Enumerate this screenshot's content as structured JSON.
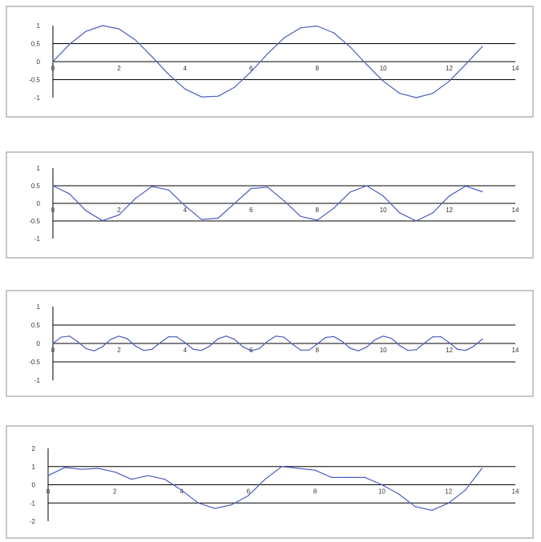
{
  "style": {
    "line_color": "#4a5bbf",
    "axis_color": "#000000",
    "frame_color": "#b4b4b4",
    "background": "#ffffff"
  },
  "chart_data": [
    {
      "type": "line",
      "title": "",
      "xlabel": "",
      "ylabel": "",
      "xlim": [
        0,
        14
      ],
      "ylim": [
        -1,
        1
      ],
      "xticks": [
        "0",
        "2",
        "4",
        "6",
        "8",
        "10",
        "12",
        "14"
      ],
      "yticks": [
        "1",
        "0.5",
        "0",
        "-0.5",
        "-1"
      ],
      "grid": true,
      "legend": "none",
      "series": [
        {
          "x": [
            0,
            0.5,
            1,
            1.5,
            2,
            2.5,
            3,
            3.5,
            4,
            4.5,
            5,
            5.5,
            6,
            6.5,
            7,
            7.5,
            8,
            8.5,
            9,
            9.5,
            10,
            10.5,
            11,
            11.5,
            12,
            12.5,
            13
          ],
          "values": [
            0,
            0.48,
            0.84,
            1.0,
            0.91,
            0.6,
            0.14,
            -0.35,
            -0.76,
            -0.98,
            -0.96,
            -0.71,
            -0.28,
            0.22,
            0.66,
            0.94,
            0.99,
            0.8,
            0.41,
            -0.08,
            -0.54,
            -0.88,
            -1.0,
            -0.88,
            -0.54,
            -0.07,
            0.42
          ]
        }
      ]
    },
    {
      "type": "line",
      "title": "",
      "xlabel": "",
      "ylabel": "",
      "xlim": [
        0,
        14
      ],
      "ylim": [
        -1,
        1
      ],
      "xticks": [
        "0",
        "2",
        "4",
        "6",
        "8",
        "10",
        "12",
        "14"
      ],
      "yticks": [
        "1",
        "0.5",
        "0",
        "-0.5",
        "-1"
      ],
      "grid": true,
      "legend": "none",
      "series": [
        {
          "x": [
            0,
            0.5,
            1,
            1.5,
            2,
            2.5,
            3,
            3.5,
            4,
            4.5,
            5,
            5.5,
            6,
            6.5,
            7,
            7.5,
            8,
            8.5,
            9,
            9.5,
            10,
            10.5,
            11,
            11.5,
            12,
            12.5,
            13
          ],
          "values": [
            0.5,
            0.27,
            -0.21,
            -0.49,
            -0.33,
            0.14,
            0.48,
            0.38,
            -0.07,
            -0.46,
            -0.42,
            0.0,
            0.42,
            0.46,
            0.07,
            -0.37,
            -0.48,
            -0.14,
            0.32,
            0.5,
            0.21,
            -0.27,
            -0.5,
            -0.27,
            0.21,
            0.49,
            0.33
          ]
        }
      ]
    },
    {
      "type": "line",
      "title": "",
      "xlabel": "",
      "ylabel": "",
      "xlim": [
        0,
        14
      ],
      "ylim": [
        -1,
        1
      ],
      "xticks": [
        "0",
        "2",
        "4",
        "6",
        "8",
        "10",
        "12",
        "14"
      ],
      "yticks": [
        "1",
        "0.5",
        "0",
        "-0.5",
        "-1"
      ],
      "grid": true,
      "legend": "none",
      "series": [
        {
          "x": [
            0,
            0.25,
            0.5,
            0.75,
            1,
            1.25,
            1.5,
            1.75,
            2,
            2.25,
            2.5,
            2.75,
            3,
            3.25,
            3.5,
            3.75,
            4,
            4.25,
            4.5,
            4.75,
            5,
            5.25,
            5.5,
            5.75,
            6,
            6.25,
            6.5,
            6.75,
            7,
            7.25,
            7.5,
            7.75,
            8,
            8.25,
            8.5,
            8.75,
            9,
            9.25,
            9.5,
            9.75,
            10,
            10.25,
            10.5,
            10.75,
            11,
            11.25,
            11.5,
            11.75,
            12,
            12.25,
            12.5,
            12.75,
            13
          ],
          "values": [
            0,
            0.17,
            0.2,
            0.05,
            -0.14,
            -0.2,
            -0.09,
            0.11,
            0.2,
            0.13,
            -0.07,
            -0.19,
            -0.16,
            0.02,
            0.18,
            0.18,
            0.02,
            -0.16,
            -0.19,
            -0.07,
            0.13,
            0.2,
            0.11,
            -0.09,
            -0.2,
            -0.14,
            0.06,
            0.2,
            0.17,
            -0.02,
            -0.18,
            -0.18,
            -0.02,
            0.16,
            0.19,
            0.06,
            -0.13,
            -0.2,
            -0.1,
            0.1,
            0.2,
            0.14,
            -0.06,
            -0.19,
            -0.17,
            0.01,
            0.18,
            0.18,
            0.02,
            -0.16,
            -0.19,
            -0.07,
            0.12
          ]
        }
      ]
    },
    {
      "type": "line",
      "title": "",
      "xlabel": "",
      "ylabel": "",
      "xlim": [
        0,
        14
      ],
      "ylim": [
        -2,
        2
      ],
      "xticks": [
        "0",
        "2",
        "4",
        "6",
        "8",
        "10",
        "12",
        "14"
      ],
      "yticks": [
        "2",
        "1",
        "0",
        "-1",
        "-2"
      ],
      "grid": true,
      "legend": "none",
      "series": [
        {
          "x": [
            0,
            0.5,
            1,
            1.5,
            2,
            2.5,
            3,
            3.5,
            4,
            4.5,
            5,
            5.5,
            6,
            6.5,
            7,
            7.5,
            8,
            8.5,
            9,
            9.5,
            10,
            10.5,
            11,
            11.5,
            12,
            12.5,
            13
          ],
          "values": [
            0.5,
            0.95,
            0.85,
            0.9,
            0.7,
            0.3,
            0.5,
            0.3,
            -0.3,
            -1.0,
            -1.3,
            -1.1,
            -0.6,
            0.3,
            1.0,
            0.9,
            0.8,
            0.4,
            0.4,
            0.4,
            0.0,
            -0.5,
            -1.2,
            -1.4,
            -1.0,
            -0.3,
            0.9
          ]
        }
      ]
    }
  ]
}
